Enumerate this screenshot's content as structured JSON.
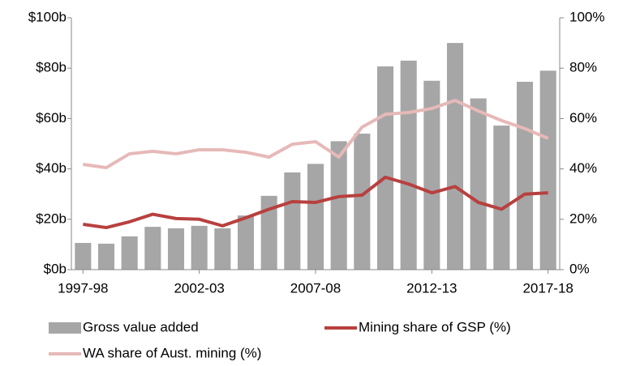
{
  "chart_data": {
    "type": "bar_line",
    "categories": [
      "1997-98",
      null,
      null,
      null,
      null,
      "2002-03",
      null,
      null,
      null,
      null,
      "2007-08",
      null,
      null,
      null,
      null,
      "2012-13",
      null,
      null,
      null,
      null,
      "2017-18"
    ],
    "series": [
      {
        "name": "Gross value added",
        "type": "bar",
        "axis": "y",
        "color": "#a6a6a6",
        "values": [
          10.6,
          10.3,
          13.2,
          17,
          16.4,
          17.4,
          16.4,
          21.5,
          29.3,
          38.6,
          42,
          51,
          54,
          80.7,
          83,
          75,
          90,
          68,
          57.2,
          74.6,
          79
        ]
      },
      {
        "name": "Mining share of GSP (%)",
        "type": "line",
        "axis": "y2",
        "color": "#b8403f",
        "values": [
          18,
          16.7,
          19,
          22,
          20.3,
          20,
          17.4,
          20.6,
          24,
          27,
          26.7,
          29,
          29.6,
          36.7,
          34,
          30.5,
          33,
          26.7,
          24,
          30,
          30.5
        ]
      },
      {
        "name": "WA share of Aust. mining (%)",
        "type": "line",
        "axis": "y2",
        "color": "#e6b9b8",
        "values": [
          41.8,
          40.5,
          46,
          47,
          46,
          47.6,
          47.6,
          46.6,
          44.7,
          49.8,
          50.8,
          44.7,
          56.6,
          61.7,
          62.4,
          64,
          67.2,
          63,
          59.2,
          56,
          52.1
        ]
      }
    ],
    "ylim": [
      0,
      100
    ],
    "yticks": [
      {
        "value": 0,
        "label": "$0b"
      },
      {
        "value": 20,
        "label": "$20b"
      },
      {
        "value": 40,
        "label": "$40b"
      },
      {
        "value": 60,
        "label": "$60b"
      },
      {
        "value": 80,
        "label": "$80b"
      },
      {
        "value": 100,
        "label": "$100b"
      }
    ],
    "y2lim": [
      0,
      100
    ],
    "y2ticks": [
      {
        "value": 0,
        "label": "0%"
      },
      {
        "value": 20,
        "label": "20%"
      },
      {
        "value": 40,
        "label": "40%"
      },
      {
        "value": 60,
        "label": "60%"
      },
      {
        "value": 80,
        "label": "80%"
      },
      {
        "value": 100,
        "label": "100%"
      }
    ],
    "legend": "bottom"
  }
}
